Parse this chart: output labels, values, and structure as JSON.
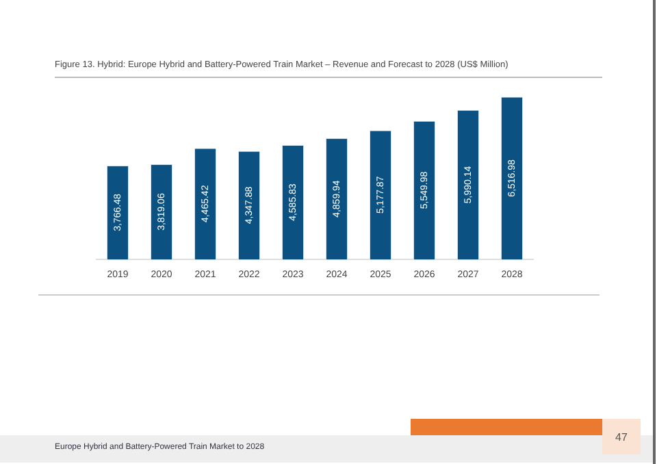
{
  "chart_data": {
    "type": "bar",
    "title": "Figure 13.    Hybrid: Europe Hybrid and Battery-Powered Train Market – Revenue and Forecast to 2028 (US$ Million)",
    "categories": [
      "2019",
      "2020",
      "2021",
      "2022",
      "2023",
      "2024",
      "2025",
      "2026",
      "2027",
      "2028"
    ],
    "values": [
      3766.48,
      3819.06,
      4465.42,
      4347.88,
      4585.83,
      4859.94,
      5177.87,
      5549.98,
      5990.14,
      6516.98
    ],
    "value_labels": [
      "3,766.48",
      "3,819.06",
      "4,465.42",
      "4,347.88",
      "4,585.83",
      "4,859.94",
      "5,177.87",
      "5,549.98",
      "5,990.14",
      "6,516.98"
    ],
    "color": "#0b5181",
    "grid": false,
    "legend": false,
    "annotations": [
      "Europe Hybrid and Battery-Powered Train Market to 2028",
      "47"
    ]
  }
}
